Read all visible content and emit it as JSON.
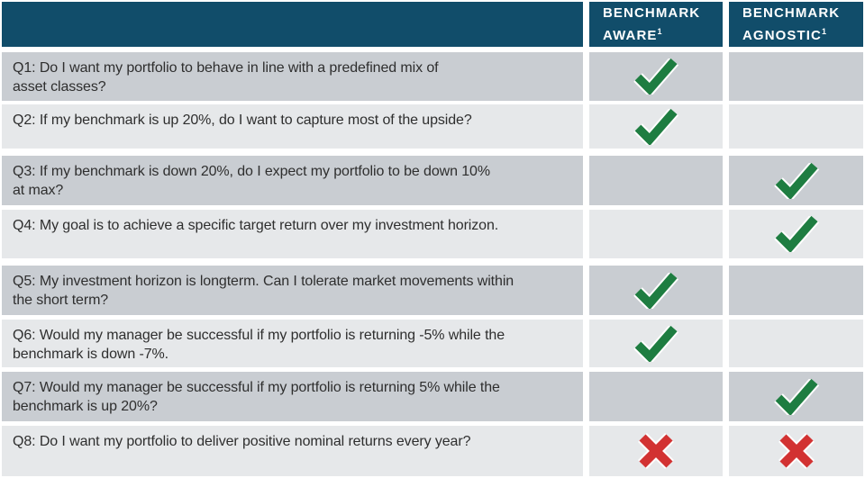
{
  "header": {
    "columns": [
      {
        "line1": "BENCHMARK",
        "line2": "AWARE",
        "footnote": "1"
      },
      {
        "line1": "BENCHMARK",
        "line2": "AGNOSTIC",
        "footnote": "1"
      }
    ]
  },
  "questions": [
    {
      "id": "Q1",
      "text": "Q1: Do I want my portfolio to behave in line with a predefined mix of\nasset classes?",
      "benchmark_aware": "check",
      "benchmark_agnostic": ""
    },
    {
      "id": "Q2",
      "text": "Q2: If my benchmark is up 20%, do I want to capture most of the upside?",
      "benchmark_aware": "check",
      "benchmark_agnostic": ""
    },
    {
      "id": "Q3",
      "text": "Q3: If my benchmark is down 20%, do I expect my portfolio to be down 10%\nat max?",
      "benchmark_aware": "",
      "benchmark_agnostic": "check"
    },
    {
      "id": "Q4",
      "text": "Q4: My goal is to achieve a specific target return over my investment horizon.",
      "benchmark_aware": "",
      "benchmark_agnostic": "check"
    },
    {
      "id": "Q5",
      "text": "Q5: My investment horizon is longterm. Can I tolerate market movements within\nthe short term?",
      "benchmark_aware": "check",
      "benchmark_agnostic": ""
    },
    {
      "id": "Q6",
      "text": "Q6: Would my manager be successful if my portfolio is returning -5% while the\nbenchmark is down -7%.",
      "benchmark_aware": "check",
      "benchmark_agnostic": ""
    },
    {
      "id": "Q7",
      "text": "Q7: Would my manager be successful if my portfolio is returning 5% while the\nbenchmark is up 20%?",
      "benchmark_aware": "",
      "benchmark_agnostic": "check"
    },
    {
      "id": "Q8",
      "text": "Q8: Do I want my portfolio to deliver positive nominal returns every year?",
      "benchmark_aware": "x",
      "benchmark_agnostic": "x"
    }
  ],
  "icons": {
    "check": "checkmark-icon",
    "x": "x-mark-icon"
  },
  "colors": {
    "header_bg": "#114d6a",
    "row_dark": "#c9cdd2",
    "row_light": "#e6e8ea",
    "check_green": "#1e7d41",
    "x_red": "#d23232",
    "text": "#2e2e2e"
  }
}
